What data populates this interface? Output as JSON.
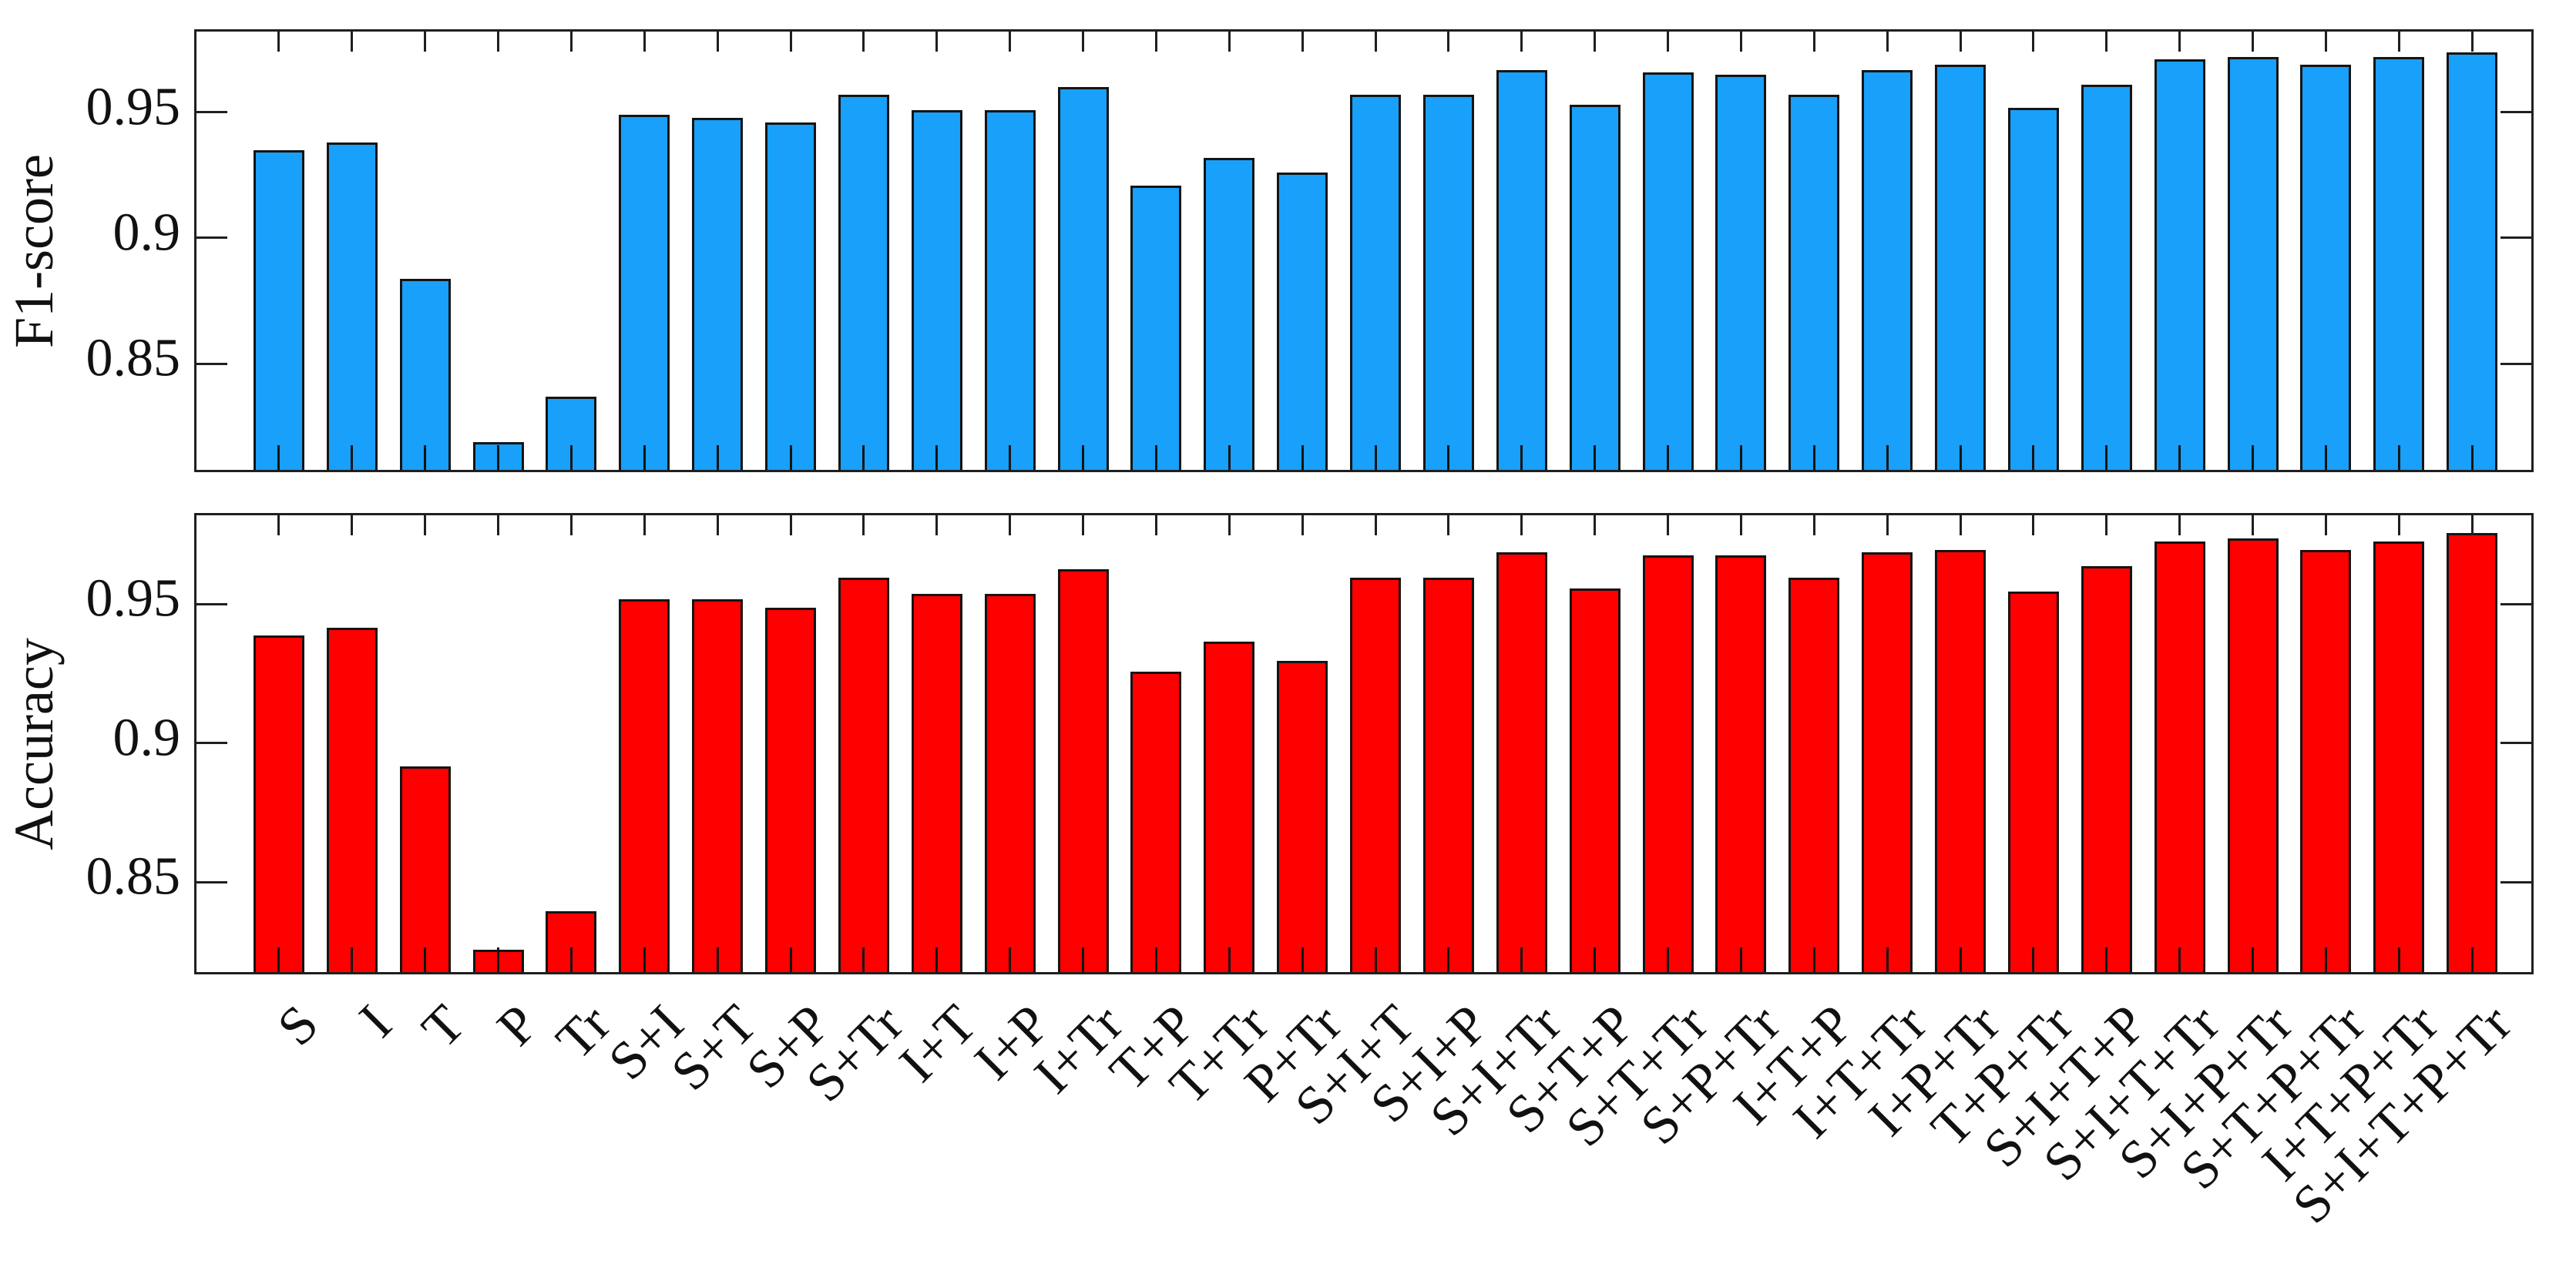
{
  "figure": {
    "background": "#ffffff",
    "frame_color": "#1f1f1f",
    "text_color": "#111111"
  },
  "chart_data": [
    {
      "type": "bar",
      "panel": "top",
      "title": "",
      "xlabel": "",
      "ylabel": "F1-score",
      "bar_color": "#18A0FA",
      "bar_edge_color": "#141414",
      "grid": false,
      "legend": null,
      "ylim": [
        0.806,
        0.982
      ],
      "yticks": [
        0.95,
        0.9,
        0.85
      ],
      "ytick_labels": [
        "0.95",
        "0.9",
        "0.85"
      ],
      "show_x_labels": false,
      "categories": [
        "S",
        "I",
        "T",
        "P",
        "Tr",
        "S+I",
        "S+T",
        "S+P",
        "S+Tr",
        "I+T",
        "I+P",
        "I+Tr",
        "T+P",
        "T+Tr",
        "P+Tr",
        "S+I+T",
        "S+I+P",
        "S+I+Tr",
        "S+T+P",
        "S+T+Tr",
        "S+P+Tr",
        "I+T+P",
        "I+T+Tr",
        "I+P+Tr",
        "T+P+Tr",
        "S+I+T+P",
        "S+I+T+Tr",
        "S+I+P+Tr",
        "S+T+P+Tr",
        "I+T+P+Tr",
        "S+I+T+P+Tr"
      ],
      "values": [
        0.933,
        0.936,
        0.882,
        0.817,
        0.835,
        0.947,
        0.946,
        0.944,
        0.955,
        0.949,
        0.949,
        0.958,
        0.919,
        0.93,
        0.924,
        0.955,
        0.955,
        0.965,
        0.951,
        0.964,
        0.963,
        0.955,
        0.965,
        0.967,
        0.95,
        0.959,
        0.969,
        0.97,
        0.967,
        0.97,
        0.972
      ]
    },
    {
      "type": "bar",
      "panel": "bottom",
      "title": "",
      "xlabel": "",
      "ylabel": "Accuracy",
      "bar_color": "#FE0000",
      "bar_edge_color": "#141414",
      "grid": false,
      "legend": null,
      "ylim": [
        0.816,
        0.982
      ],
      "yticks": [
        0.95,
        0.9,
        0.85
      ],
      "ytick_labels": [
        "0.95",
        "0.9",
        "0.85"
      ],
      "show_x_labels": true,
      "categories": [
        "S",
        "I",
        "T",
        "P",
        "Tr",
        "S+I",
        "S+T",
        "S+P",
        "S+Tr",
        "I+T",
        "I+P",
        "I+Tr",
        "T+P",
        "T+Tr",
        "P+Tr",
        "S+I+T",
        "S+I+P",
        "S+I+Tr",
        "S+T+P",
        "S+T+Tr",
        "S+P+Tr",
        "I+T+P",
        "I+T+Tr",
        "I+P+Tr",
        "T+P+Tr",
        "S+I+T+P",
        "S+I+T+Tr",
        "S+I+P+Tr",
        "S+T+P+Tr",
        "I+T+P+Tr",
        "S+I+T+P+Tr"
      ],
      "values": [
        0.937,
        0.94,
        0.89,
        0.824,
        0.838,
        0.95,
        0.95,
        0.947,
        0.958,
        0.952,
        0.952,
        0.961,
        0.924,
        0.935,
        0.928,
        0.958,
        0.958,
        0.967,
        0.954,
        0.966,
        0.966,
        0.958,
        0.967,
        0.968,
        0.953,
        0.962,
        0.971,
        0.972,
        0.968,
        0.971,
        0.974
      ]
    }
  ]
}
